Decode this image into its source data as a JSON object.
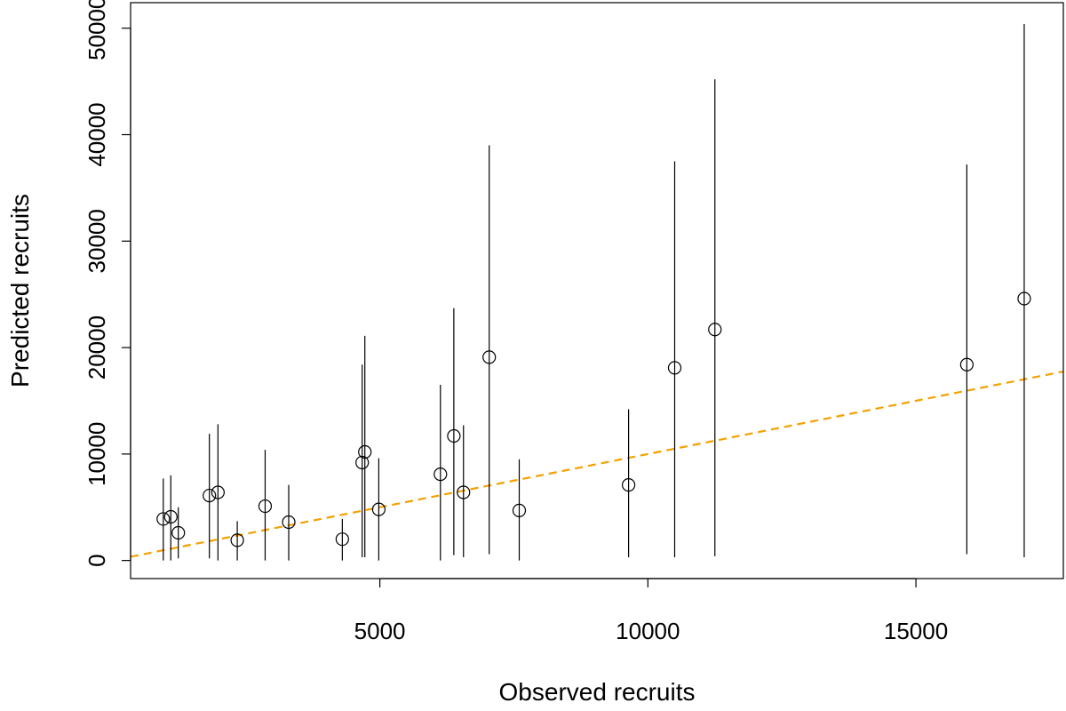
{
  "chart_data": {
    "type": "scatter",
    "xlabel": "Observed recruits",
    "ylabel": "Predicted recruits",
    "xlim": [
      350,
      17750
    ],
    "ylim": [
      -1700,
      52400
    ],
    "x_ticks": [
      {
        "value": 5000,
        "label": "5000"
      },
      {
        "value": 10000,
        "label": "10000"
      },
      {
        "value": 15000,
        "label": "15000"
      }
    ],
    "y_ticks": [
      {
        "value": 0,
        "label": "0"
      },
      {
        "value": 10000,
        "label": "10000"
      },
      {
        "value": 20000,
        "label": "20000"
      },
      {
        "value": 30000,
        "label": "30000"
      },
      {
        "value": 40000,
        "label": "40000"
      },
      {
        "value": 50000,
        "label": "50000"
      }
    ],
    "grid": false,
    "points": [
      {
        "x": 960,
        "y": 3900,
        "lo": 0,
        "hi": 7700
      },
      {
        "x": 1100,
        "y": 4100,
        "lo": 0,
        "hi": 8000
      },
      {
        "x": 1240,
        "y": 2600,
        "lo": 200,
        "hi": 5000
      },
      {
        "x": 1820,
        "y": 6100,
        "lo": 200,
        "hi": 11900
      },
      {
        "x": 1980,
        "y": 6400,
        "lo": 0,
        "hi": 12800
      },
      {
        "x": 2340,
        "y": 1900,
        "lo": 0,
        "hi": 3700
      },
      {
        "x": 2860,
        "y": 5100,
        "lo": 0,
        "hi": 10400
      },
      {
        "x": 3300,
        "y": 3600,
        "lo": 0,
        "hi": 7100
      },
      {
        "x": 4300,
        "y": 2000,
        "lo": 0,
        "hi": 3900
      },
      {
        "x": 4670,
        "y": 9200,
        "lo": 300,
        "hi": 18400
      },
      {
        "x": 4720,
        "y": 10200,
        "lo": 300,
        "hi": 21100
      },
      {
        "x": 4980,
        "y": 4800,
        "lo": 0,
        "hi": 9600
      },
      {
        "x": 6130,
        "y": 8100,
        "lo": 0,
        "hi": 16500
      },
      {
        "x": 6380,
        "y": 11700,
        "lo": 500,
        "hi": 23700
      },
      {
        "x": 6560,
        "y": 6400,
        "lo": 300,
        "hi": 12700
      },
      {
        "x": 7040,
        "y": 19100,
        "lo": 600,
        "hi": 39000
      },
      {
        "x": 7600,
        "y": 4700,
        "lo": 0,
        "hi": 9500
      },
      {
        "x": 9640,
        "y": 7100,
        "lo": 300,
        "hi": 14200
      },
      {
        "x": 10500,
        "y": 18100,
        "lo": 300,
        "hi": 37500
      },
      {
        "x": 11250,
        "y": 21700,
        "lo": 400,
        "hi": 45200
      },
      {
        "x": 15950,
        "y": 18400,
        "lo": 600,
        "hi": 37200
      },
      {
        "x": 17020,
        "y": 24600,
        "lo": 300,
        "hi": 50400
      }
    ],
    "reference_line": {
      "style": "dashed",
      "color": "#F5A000",
      "x": [
        350,
        17750
      ],
      "y": [
        350,
        17750
      ]
    },
    "marker_color": "#000000"
  }
}
